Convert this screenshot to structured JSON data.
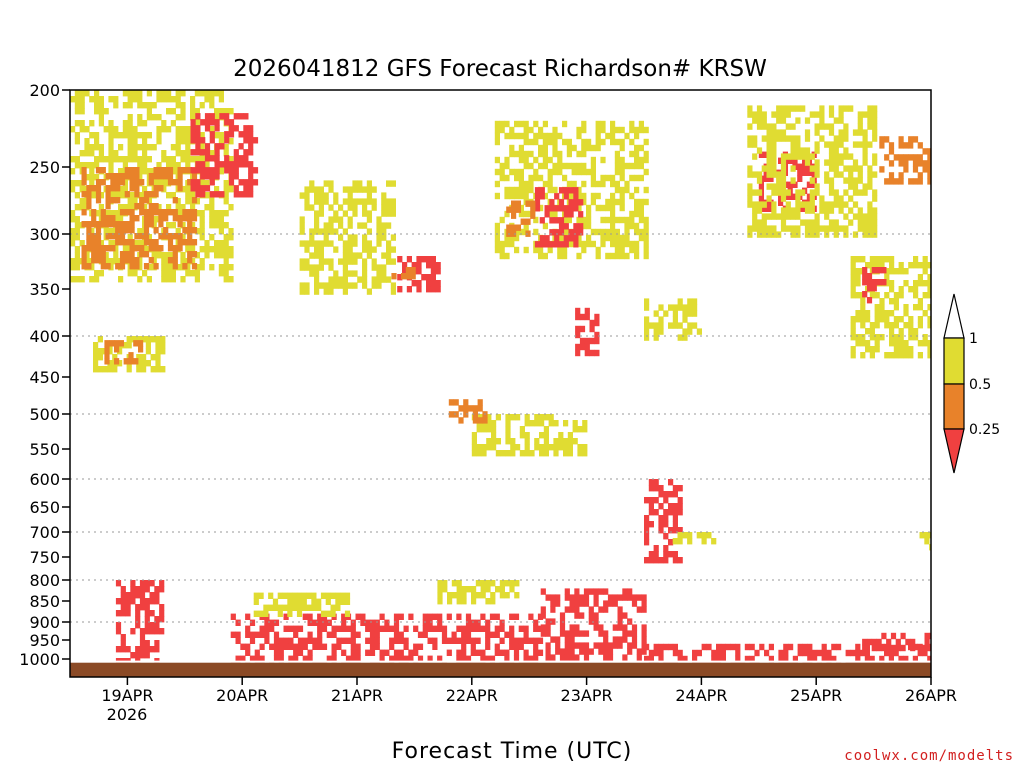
{
  "chart_data": {
    "type": "heatmap",
    "title": "2026041812 GFS Forecast Richardson# KRSW",
    "xlabel": "Forecast Time (UTC)",
    "ylabel": "",
    "credit": "coolwx.com/modelts",
    "y_ticks": [
      200,
      250,
      300,
      350,
      400,
      450,
      500,
      550,
      600,
      650,
      700,
      750,
      800,
      850,
      900,
      950,
      1000
    ],
    "y_grid": [
      300,
      400,
      500,
      600,
      700,
      800,
      900
    ],
    "x_ticks": [
      {
        "day": 0,
        "label": "19APR"
      },
      {
        "day": 1,
        "label": "20APR"
      },
      {
        "day": 2,
        "label": "21APR"
      },
      {
        "day": 3,
        "label": "22APR"
      },
      {
        "day": 4,
        "label": "23APR"
      },
      {
        "day": 5,
        "label": "24APR"
      },
      {
        "day": 6,
        "label": "25APR"
      },
      {
        "day": 7,
        "label": "26APR"
      }
    ],
    "x_sublabel": "2026",
    "xlim": [
      -0.5,
      7.0
    ],
    "ylim": [
      1040,
      200
    ],
    "legend": {
      "ticks": [
        "1",
        "0.5",
        "0.25"
      ],
      "bins": [
        {
          "range": "> 1",
          "color": "#ffffff"
        },
        {
          "range": "0.5 - 1",
          "color": "#e0dc32"
        },
        {
          "range": "0.25 - 0.5",
          "color": "#e8822a"
        },
        {
          "range": "< 0.25",
          "color": "#f04040"
        }
      ]
    },
    "ground_color": "#8b4a26",
    "regions": [
      {
        "bin": "0.5 - 1",
        "t": [
          -0.5,
          0.9
        ],
        "p": [
          200,
          340
        ]
      },
      {
        "bin": "0.25 - 0.5",
        "t": [
          -0.4,
          0.6
        ],
        "p": [
          250,
          330
        ]
      },
      {
        "bin": "< 0.25",
        "t": [
          0.55,
          1.1
        ],
        "p": [
          215,
          270
        ]
      },
      {
        "bin": "0.5 - 1",
        "t": [
          -0.3,
          0.3
        ],
        "p": [
          400,
          440
        ]
      },
      {
        "bin": "0.25 - 0.5",
        "t": [
          -0.2,
          0.1
        ],
        "p": [
          405,
          430
        ]
      },
      {
        "bin": "0.5 - 1",
        "t": [
          1.5,
          2.3
        ],
        "p": [
          260,
          350
        ]
      },
      {
        "bin": "< 0.25",
        "t": [
          2.35,
          2.7
        ],
        "p": [
          320,
          350
        ]
      },
      {
        "bin": "0.25 - 0.5",
        "t": [
          2.3,
          2.5
        ],
        "p": [
          330,
          345
        ]
      },
      {
        "bin": "0.5 - 1",
        "t": [
          3.2,
          4.5
        ],
        "p": [
          220,
          320
        ]
      },
      {
        "bin": "< 0.25",
        "t": [
          3.55,
          3.95
        ],
        "p": [
          265,
          310
        ]
      },
      {
        "bin": "0.25 - 0.5",
        "t": [
          3.3,
          3.55
        ],
        "p": [
          275,
          300
        ]
      },
      {
        "bin": "< 0.25",
        "t": [
          3.9,
          4.1
        ],
        "p": [
          370,
          420
        ]
      },
      {
        "bin": "0.5 - 1",
        "t": [
          3.0,
          4.0
        ],
        "p": [
          500,
          560
        ]
      },
      {
        "bin": "0.25 - 0.5",
        "t": [
          2.8,
          3.1
        ],
        "p": [
          480,
          510
        ]
      },
      {
        "bin": "0.5 - 1",
        "t": [
          4.5,
          5.0
        ],
        "p": [
          360,
          400
        ]
      },
      {
        "bin": "< 0.25",
        "t": [
          4.5,
          4.8
        ],
        "p": [
          600,
          760
        ]
      },
      {
        "bin": "0.5 - 1",
        "t": [
          4.75,
          5.1
        ],
        "p": [
          700,
          720
        ]
      },
      {
        "bin": "< 0.25",
        "t": [
          5.5,
          6.0
        ],
        "p": [
          240,
          280
        ]
      },
      {
        "bin": "0.5 - 1",
        "t": [
          5.4,
          6.5
        ],
        "p": [
          210,
          300
        ]
      },
      {
        "bin": "0.5 - 1",
        "t": [
          6.3,
          7.0
        ],
        "p": [
          320,
          420
        ]
      },
      {
        "bin": "0.25 - 0.5",
        "t": [
          6.55,
          7.0
        ],
        "p": [
          230,
          260
        ]
      },
      {
        "bin": "< 0.25",
        "t": [
          6.4,
          6.6
        ],
        "p": [
          330,
          360
        ]
      },
      {
        "bin": "0.5 - 1",
        "t": [
          6.9,
          7.0
        ],
        "p": [
          700,
          730
        ]
      },
      {
        "bin": "< 0.25",
        "t": [
          -0.1,
          0.3
        ],
        "p": [
          800,
          1000
        ]
      },
      {
        "bin": "< 0.25",
        "t": [
          0.9,
          3.6
        ],
        "p": [
          880,
          1010
        ]
      },
      {
        "bin": "0.5 - 1",
        "t": [
          1.1,
          1.9
        ],
        "p": [
          830,
          880
        ]
      },
      {
        "bin": "0.5 - 1",
        "t": [
          2.7,
          3.4
        ],
        "p": [
          800,
          850
        ]
      },
      {
        "bin": "< 0.25",
        "t": [
          3.6,
          4.5
        ],
        "p": [
          820,
          1000
        ]
      },
      {
        "bin": "< 0.25",
        "t": [
          4.5,
          7.0
        ],
        "p": [
          960,
          1010
        ]
      },
      {
        "bin": "< 0.25",
        "t": [
          6.4,
          7.0
        ],
        "p": [
          930,
          970
        ]
      }
    ]
  }
}
